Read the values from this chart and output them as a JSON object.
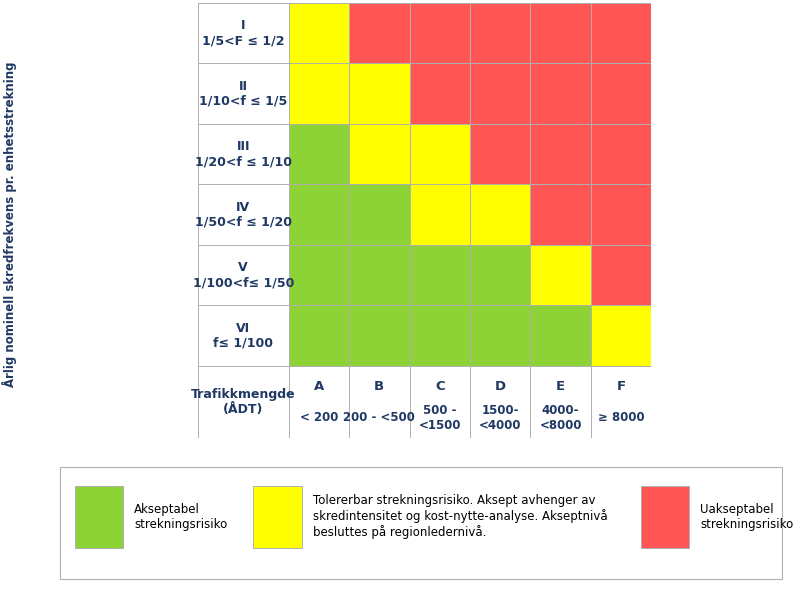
{
  "rows": [
    "I\n1/5<F ≤ 1/2",
    "II\n1/10<f ≤ 1/5",
    "III\n1/20<f ≤ 1/10",
    "IV\n1/50<f ≤ 1/20",
    "V\n1/100<f≤ 1/50",
    "VI\nf≤ 1/100"
  ],
  "cols_top": [
    "A",
    "B",
    "C",
    "D",
    "E",
    "F"
  ],
  "cols_bot": [
    "< 200",
    "200 - <500",
    "500 -\n<1500",
    "1500-\n<4000",
    "4000-\n<8000",
    "≥ 8000"
  ],
  "grid_colors": [
    [
      "#FFFF00",
      "#FF5555",
      "#FF5555",
      "#FF5555",
      "#FF5555",
      "#FF5555"
    ],
    [
      "#FFFF00",
      "#FFFF00",
      "#FF5555",
      "#FF5555",
      "#FF5555",
      "#FF5555"
    ],
    [
      "#8DD335",
      "#FFFF00",
      "#FFFF00",
      "#FF5555",
      "#FF5555",
      "#FF5555"
    ],
    [
      "#8DD335",
      "#8DD335",
      "#FFFF00",
      "#FFFF00",
      "#FF5555",
      "#FF5555"
    ],
    [
      "#8DD335",
      "#8DD335",
      "#8DD335",
      "#8DD335",
      "#FFFF00",
      "#FF5555"
    ],
    [
      "#8DD335",
      "#8DD335",
      "#8DD335",
      "#8DD335",
      "#8DD335",
      "#FFFF00"
    ]
  ],
  "ylabel": "Årlig nominell skredfrekvens pr. enhetsstrekning",
  "xlabel_label": "Trafikkmengde\n(ÅDT)",
  "legend_green_text": "Akseptabel\nstrekningsrisiko",
  "legend_yellow_text": "Tolererbar strekningsrisiko. Aksept avhenger av\nskredintensitet og kost-nytte-analyse. Akseptnivå\nbesluttes på regionledernivå.",
  "legend_red_text": "Uakseptabel\nstrekningsrisiko",
  "green_color": "#8DD335",
  "yellow_color": "#FFFF00",
  "red_color": "#FF5555",
  "border_color": "#B0B0B0",
  "bg_color": "#FFFFFF",
  "text_color": "#1F3864"
}
